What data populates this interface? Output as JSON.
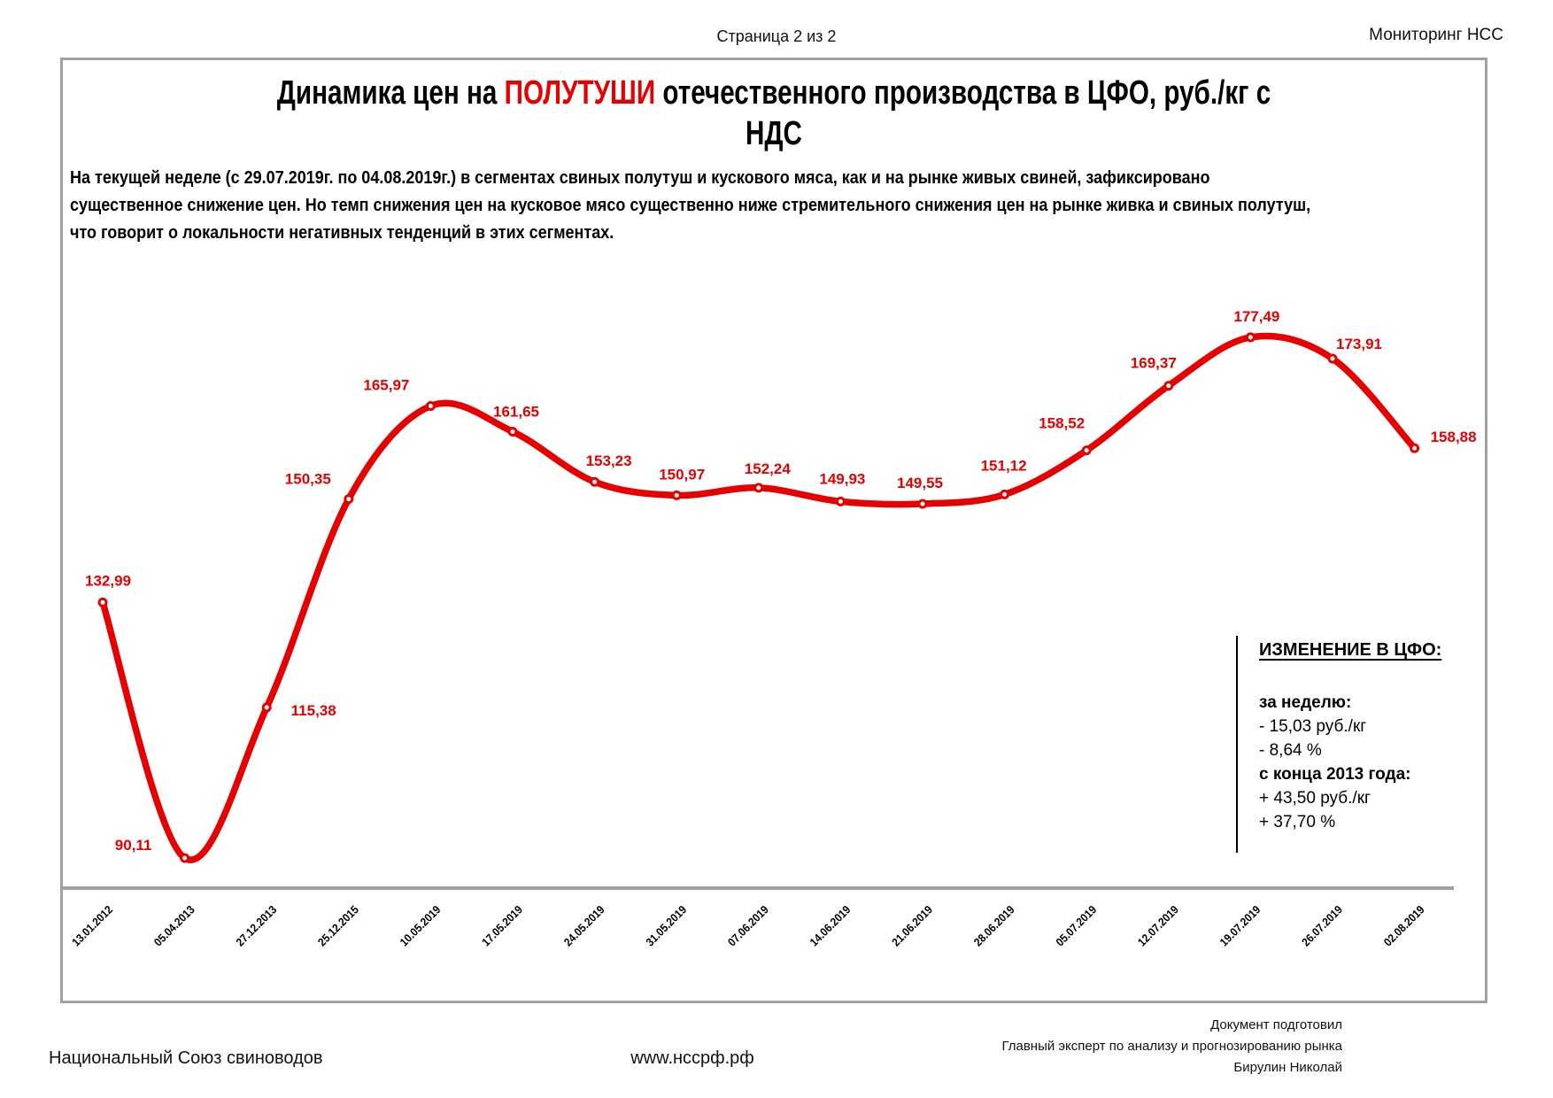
{
  "page": {
    "header": {
      "page_label": "Страница 2 из 2",
      "monitoring_label": "Мониторинг НСС"
    },
    "title": {
      "prefix": "Динамика цен на ",
      "highlight": "ПОЛУТУШИ",
      "suffix": " отечественного производства в ЦФО, руб./кг с",
      "line2": "НДС",
      "highlight_color": "#e70000"
    },
    "commentary": {
      "line1": "На текущей неделе (с 29.07.2019г. по 04.08.2019г.) в сегментах свиных полутуш и кускового мяса, как и на рынке живых свиней, зафиксировано",
      "line2": "существенное снижение цен. Но темп снижения цен на кусковое мясо существенно ниже стремительного снижения цен на рынке живка и свиных полутуш,",
      "line3": "что говорит о локальности негативных тенденций в этих сегментах."
    },
    "change_box": {
      "heading": "ИЗМЕНЕНИЕ В ЦФО:",
      "week_label": "за неделю:",
      "week_rub": "- 15,03 руб./кг",
      "week_pct": "- 8,64 %",
      "since_label": "с конца 2013 года:",
      "since_rub": "+ 43,50 руб./кг",
      "since_pct": "+ 37,70 %"
    },
    "footer": {
      "left": "Национальный Союз свиноводов",
      "site": "www.нссрф.рф",
      "right_line1": "Документ подготовил",
      "right_line2": "Главный эксперт по анализу и прогнозированию рынка",
      "right_line3": "Бирулин Николай"
    }
  },
  "chart_data": {
    "type": "line",
    "title": "Динамика цен на ПОЛУТУШИ отечественного производства в ЦФО, руб./кг с НДС",
    "categories": [
      "13.01.2012",
      "05.04.2013",
      "27.12.2013",
      "25.12.2015",
      "10.05.2019",
      "17.05.2019",
      "24.05.2019",
      "31.05.2019",
      "07.06.2019",
      "14.06.2019",
      "21.06.2019",
      "28.06.2019",
      "05.07.2019",
      "12.07.2019",
      "19.07.2019",
      "26.07.2019",
      "02.08.2019"
    ],
    "values": [
      132.99,
      90.11,
      115.38,
      150.35,
      165.97,
      161.65,
      153.23,
      150.97,
      152.24,
      149.93,
      149.55,
      151.12,
      158.52,
      169.37,
      177.49,
      173.91,
      158.88
    ],
    "data_labels": [
      "132,99",
      "90,11",
      "115,38",
      "150,35",
      "165,97",
      "161,65",
      "153,23",
      "150,97",
      "152,24",
      "149,93",
      "149,55",
      "151,12",
      "158,52",
      "169,37",
      "177,49",
      "173,91",
      "158,88"
    ],
    "line_color": "#e70000",
    "marker": "circle-white-fill-red-stroke",
    "smooth": true,
    "grid": false,
    "y_axis_visible": false,
    "x_axis_line_color": "#a0a0a0",
    "value_range_shown": [
      90.11,
      177.49
    ]
  }
}
